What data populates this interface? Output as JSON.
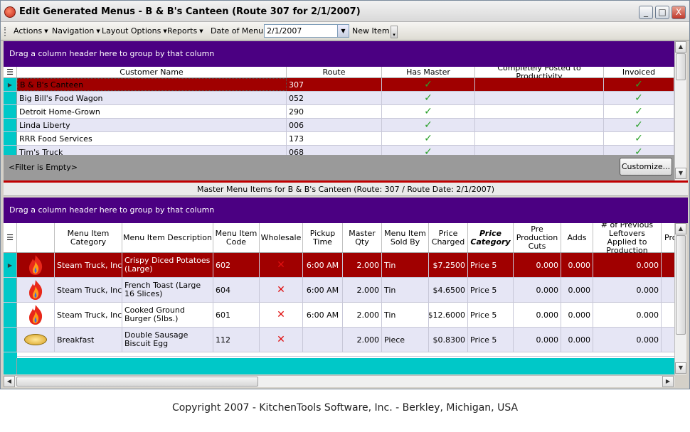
{
  "window": {
    "title": "Edit Generated Menus - B & B's Canteen (Route 307 for 2/1/2007)",
    "controls": [
      "_",
      "□",
      "X"
    ]
  },
  "toolbar": {
    "actions": "Actions",
    "navigation": "Navigation",
    "layout": "Layout Options",
    "reports": "Reports",
    "date_label": "Date of Menu:",
    "date_value": "2/1/2007",
    "new_item": "New Item"
  },
  "customers": {
    "group_prompt": "Drag a column header here to group by that column",
    "columns": [
      "Customer Name",
      "Route",
      "Has Master",
      "Completely Posted to Productivity",
      "Invoiced"
    ],
    "rows": [
      {
        "name": "B & B's Canteen",
        "route": "307",
        "has_master": true,
        "posted": false,
        "invoiced": true
      },
      {
        "name": "Big Bill's Food Wagon",
        "route": "052",
        "has_master": true,
        "posted": false,
        "invoiced": true
      },
      {
        "name": "Detroit Home-Grown",
        "route": "290",
        "has_master": true,
        "posted": false,
        "invoiced": true
      },
      {
        "name": "Linda Liberty",
        "route": "006",
        "has_master": true,
        "posted": false,
        "invoiced": true
      },
      {
        "name": "RRR Food Services",
        "route": "173",
        "has_master": true,
        "posted": false,
        "invoiced": true
      },
      {
        "name": "Tim's Truck",
        "route": "068",
        "has_master": true,
        "posted": false,
        "invoiced": true
      }
    ],
    "filter_text": "<Filter is Empty>",
    "customize_label": "Customize..."
  },
  "master": {
    "title": "Master Menu Items for B & B's Canteen (Route: 307 / Route Date: 2/1/2007)",
    "group_prompt": "Drag a column header here to group by that column",
    "columns": {
      "category": "Menu Item Category",
      "description": "Menu Item Description",
      "code": "Menu Item Code",
      "wholesale": "Wholesale",
      "pickup": "Pickup Time",
      "qty": "Master Qty",
      "soldby": "Menu Item Sold By",
      "price": "Price Charged",
      "pricecat": "Price Category",
      "precuts": "Pre Production Cuts",
      "adds": "Adds",
      "leftovers": "# of Previous Leftovers Applied to Production",
      "more": "Pro"
    },
    "rows": [
      {
        "icon": "flame-icon",
        "category": "Steam Truck, Inc.",
        "description": "Crispy Diced Potatoes (Large)",
        "code": "602",
        "wholesale": "✕",
        "pickup": "6:00 AM",
        "qty": "2.000",
        "soldby": "Tin",
        "price": "$7.2500",
        "pricecat": "Price 5",
        "precuts": "0.000",
        "adds": "0.000",
        "leftovers": "0.000"
      },
      {
        "icon": "flame-icon",
        "category": "Steam Truck, Inc.",
        "description": "French Toast (Large 16 Slices)",
        "code": "604",
        "wholesale": "✕",
        "pickup": "6:00 AM",
        "qty": "2.000",
        "soldby": "Tin",
        "price": "$4.6500",
        "pricecat": "Price 5",
        "precuts": "0.000",
        "adds": "0.000",
        "leftovers": "0.000"
      },
      {
        "icon": "flame-icon",
        "category": "Steam Truck, Inc.",
        "description": "Cooked Ground Burger (5lbs.)",
        "code": "601",
        "wholesale": "✕",
        "pickup": "6:00 AM",
        "qty": "2.000",
        "soldby": "Tin",
        "price": "$12.6000",
        "pricecat": "Price 5",
        "precuts": "0.000",
        "adds": "0.000",
        "leftovers": "0.000"
      },
      {
        "icon": "biscuit-icon",
        "category": "Breakfast",
        "description": "Double Sausage Biscuit Egg",
        "code": "112",
        "wholesale": "✕",
        "pickup": "",
        "qty": "2.000",
        "soldby": "Piece",
        "price": "$0.8300",
        "pricecat": "Price 5",
        "precuts": "0.000",
        "adds": "0.000",
        "leftovers": "0.000"
      }
    ]
  },
  "copyright": "Copyright 2007 - KitchenTools Software, Inc. - Berkley, Michigan, USA",
  "colors": {
    "selection": "#a00000",
    "groupbar": "#4b0082",
    "indicator": "#00c8c8",
    "check": "#2aa02a",
    "x": "#e01010"
  }
}
